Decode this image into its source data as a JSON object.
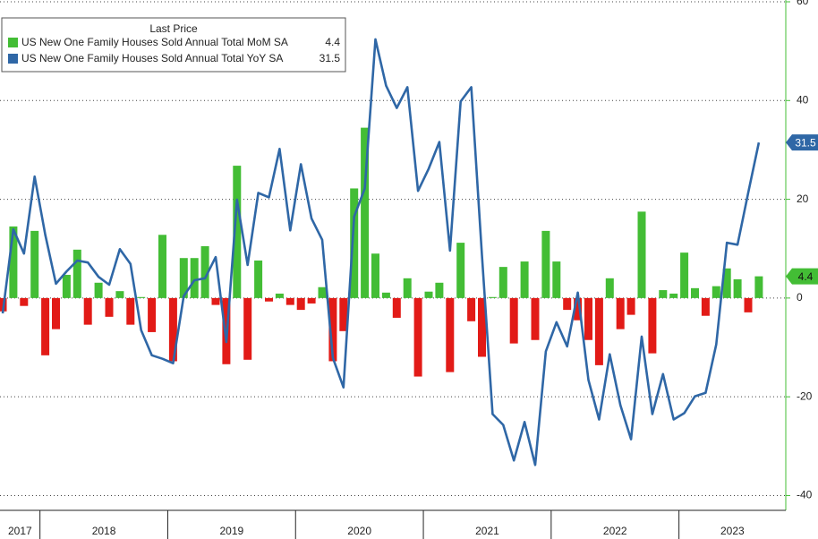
{
  "chart_data": {
    "type": "bar",
    "legend_title": "Last Price",
    "categories": [
      null,
      null,
      null,
      null,
      null,
      null,
      null,
      null,
      null,
      null,
      null,
      null,
      null,
      null,
      null,
      null,
      null,
      null,
      null,
      null,
      null,
      null,
      null,
      null,
      null,
      null,
      null,
      null,
      null,
      null,
      null,
      null,
      null,
      null,
      null,
      null,
      null,
      null,
      null,
      null,
      null,
      null,
      null,
      null,
      null,
      null,
      null,
      null,
      null,
      null,
      null,
      null,
      null,
      null,
      null,
      null,
      null,
      null,
      null,
      null,
      null,
      null,
      null,
      null,
      null,
      null,
      null,
      null,
      null,
      null,
      null,
      null
    ],
    "x_axis_labels": [
      "2017",
      "2018",
      "2019",
      "2020",
      "2021",
      "2022",
      "2023"
    ],
    "series": [
      {
        "name": "US New One Family Houses Sold Annual Total MoM SA",
        "type": "bar",
        "color": "#43bd35",
        "negative_color": "#e21b17",
        "values": [
          -2.7,
          14.5,
          -1.6,
          13.6,
          -11.6,
          -6.3,
          4.7,
          9.8,
          -5.4,
          3.1,
          -3.8,
          1.4,
          -5.4,
          0.2,
          -6.9,
          12.8,
          -12.8,
          8.1,
          8.1,
          10.5,
          -1.4,
          -13.4,
          26.8,
          -12.5,
          7.6,
          -0.7,
          0.9,
          -1.4,
          -2.4,
          -1.1,
          2.2,
          -12.8,
          -6.7,
          22.2,
          34.5,
          9.0,
          1.1,
          -4.0,
          4.0,
          -15.9,
          1.3,
          3.1,
          -15.0,
          11.2,
          -4.7,
          -11.9,
          0.2,
          6.3,
          -9.2,
          7.4,
          -8.5,
          13.6,
          7.4,
          -2.4,
          -4.5,
          -8.5,
          -13.6,
          4.0,
          -6.3,
          -3.4,
          17.5,
          -11.2,
          1.6,
          0.9,
          9.2,
          2.0,
          -3.6,
          2.4,
          6.0,
          3.8,
          -2.9,
          4.4
        ]
      },
      {
        "name": "US New One Family Houses Sold Annual Total YoY SA",
        "type": "line",
        "color": "#2f67a6",
        "values": [
          -3.1,
          13.9,
          9.0,
          24.6,
          12.8,
          2.9,
          5.4,
          7.6,
          7.2,
          4.3,
          2.7,
          9.9,
          6.9,
          -6.5,
          -11.6,
          -12.3,
          -13.2,
          0.4,
          3.6,
          4.0,
          8.3,
          -8.9,
          19.9,
          6.7,
          21.3,
          20.4,
          30.2,
          13.7,
          27.1,
          16.1,
          11.8,
          -12.1,
          -18.1,
          16.5,
          22.2,
          52.4,
          43.0,
          38.5,
          42.7,
          21.7,
          26.2,
          31.6,
          9.6,
          39.8,
          42.7,
          8.7,
          -23.5,
          -25.7,
          -32.9,
          -25.1,
          -33.8,
          -10.8,
          -4.9,
          -9.8,
          1.1,
          -16.6,
          -24.6,
          -11.4,
          -21.7,
          -28.6,
          -7.8,
          -23.5,
          -15.4,
          -24.6,
          -23.3,
          -19.9,
          -19.2,
          -9.4,
          11.2,
          10.8,
          21.3,
          31.5
        ]
      }
    ],
    "ylim": [
      -43,
      60
    ],
    "yticks": [
      -40,
      -20,
      0,
      20,
      40,
      60
    ],
    "grid": true
  }
}
